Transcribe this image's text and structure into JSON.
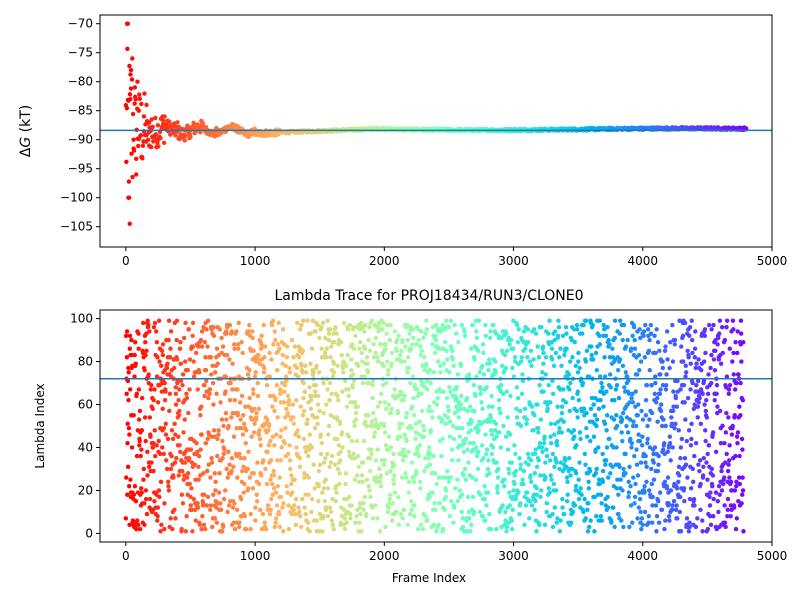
{
  "chart_data": [
    {
      "type": "scatter",
      "title": "",
      "xlabel": "",
      "ylabel": "ΔG (kT)",
      "xlim": [
        -200,
        5000
      ],
      "ylim": [
        -108.5,
        -68.5
      ],
      "x_ticks": [
        0,
        1000,
        2000,
        3000,
        4000,
        5000
      ],
      "x_tick_labels": [
        "0",
        "1000",
        "2000",
        "3000",
        "4000",
        "5000"
      ],
      "y_ticks": [
        -70,
        -75,
        -80,
        -85,
        -90,
        -95,
        -100,
        -105
      ],
      "y_tick_labels": [
        "−70",
        "−75",
        "−80",
        "−85",
        "−90",
        "−95",
        "−100",
        "−105"
      ],
      "hline": -88.4,
      "colormap": "rainbow (red → violet over frame index)",
      "series_summary": {
        "frames": [
          0,
          4800
        ],
        "early_values_range": [
          -104.5,
          -70
        ],
        "converged_value": -88.3,
        "points": [
          [
            10,
            -70
          ],
          [
            15,
            -70
          ],
          [
            20,
            -100
          ],
          [
            25,
            -100
          ],
          [
            30,
            -104.5
          ],
          [
            35,
            -83
          ],
          [
            40,
            -78
          ],
          [
            50,
            -76
          ],
          [
            60,
            -90
          ],
          [
            70,
            -81
          ],
          [
            80,
            -96
          ],
          [
            90,
            -80
          ],
          [
            100,
            -85
          ],
          [
            120,
            -93
          ],
          [
            140,
            -86
          ],
          [
            160,
            -84
          ],
          [
            180,
            -91
          ],
          [
            200,
            -86.5
          ],
          [
            250,
            -90
          ],
          [
            300,
            -86
          ],
          [
            400,
            -87
          ],
          [
            500,
            -89.5
          ],
          [
            700,
            -88
          ],
          [
            1000,
            -89
          ],
          [
            1500,
            -88.6
          ],
          [
            2000,
            -88
          ],
          [
            2500,
            -88.2
          ],
          [
            3000,
            -88.2
          ],
          [
            3500,
            -88.3
          ],
          [
            4000,
            -88.3
          ],
          [
            4500,
            -88.2
          ],
          [
            4800,
            -88.2
          ]
        ]
      }
    },
    {
      "type": "scatter",
      "title": "Lambda Trace for PROJ18434/RUN3/CLONE0",
      "xlabel": "Frame Index",
      "ylabel": "Lambda Index",
      "xlim": [
        -200,
        5000
      ],
      "ylim": [
        -4,
        104
      ],
      "x_ticks": [
        0,
        1000,
        2000,
        3000,
        4000,
        5000
      ],
      "x_tick_labels": [
        "0",
        "1000",
        "2000",
        "3000",
        "4000",
        "5000"
      ],
      "y_ticks": [
        0,
        20,
        40,
        60,
        80,
        100
      ],
      "y_tick_labels": [
        "0",
        "20",
        "40",
        "60",
        "80",
        "100"
      ],
      "hline": 72,
      "colormap": "rainbow (red → violet over frame index)",
      "series_summary": {
        "frames": [
          0,
          4780
        ],
        "lambda_range": [
          1,
          99
        ],
        "distribution": "uniform random across lambda 1-99 for each frame"
      }
    }
  ]
}
